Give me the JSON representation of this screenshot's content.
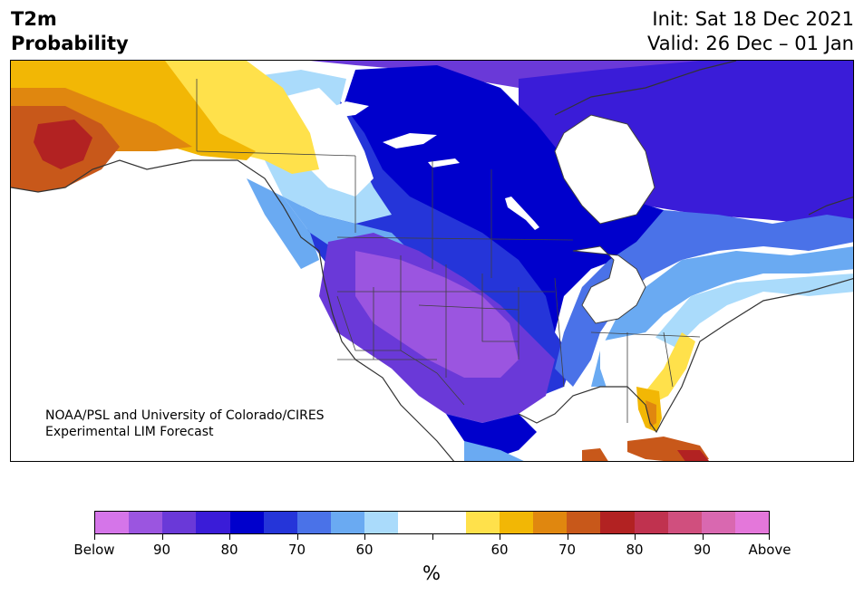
{
  "header": {
    "title_line1": "T2m",
    "title_line2": "Probability",
    "init": "Init: Sat 18 Dec 2021",
    "valid": "Valid: 26 Dec – 01 Jan"
  },
  "map": {
    "credit_line1": "NOAA/PSL and University of Colorado/CIRES",
    "credit_line2": "Experimental LIM Forecast",
    "regions": [
      {
        "name": "alaska-west",
        "category": "80-90 above",
        "color": "#b22222"
      },
      {
        "name": "alaska-central",
        "category": "70 above",
        "color": "#c8581a"
      },
      {
        "name": "alaska-east-yukon",
        "category": "50-60 above",
        "color": "#ffe14b"
      },
      {
        "name": "northwest-territories",
        "category": "near normal to 60 below",
        "color": "#a8dcfb"
      },
      {
        "name": "central-canada",
        "category": "80 below",
        "color": "#0000cc"
      },
      {
        "name": "hudson-bay-quebec",
        "category": "80-90 below",
        "color": "#3a1cd8"
      },
      {
        "name": "western-us",
        "category": "90 below",
        "color": "#9b55e0"
      },
      {
        "name": "northeast-us",
        "category": "near normal",
        "color": "#ffffff"
      },
      {
        "name": "florida",
        "category": "60-70 above",
        "color": "#f0b000"
      }
    ]
  },
  "colorbar": {
    "unit": "%",
    "colors": [
      "#d575e9",
      "#9b55e0",
      "#6a39d8",
      "#3a1cd8",
      "#0000cc",
      "#2535d9",
      "#4a72e8",
      "#6aaaf2",
      "#aadbfb",
      "#ffffff",
      "#ffffff",
      "#ffe14b",
      "#f2b705",
      "#e0870f",
      "#c8581a",
      "#b22222",
      "#c0324f",
      "#d04f7e",
      "#d968b0",
      "#e477da"
    ],
    "tick_labels": [
      "Below",
      "90",
      "80",
      "70",
      "60",
      "",
      "60",
      "70",
      "80",
      "90",
      "Above"
    ]
  }
}
